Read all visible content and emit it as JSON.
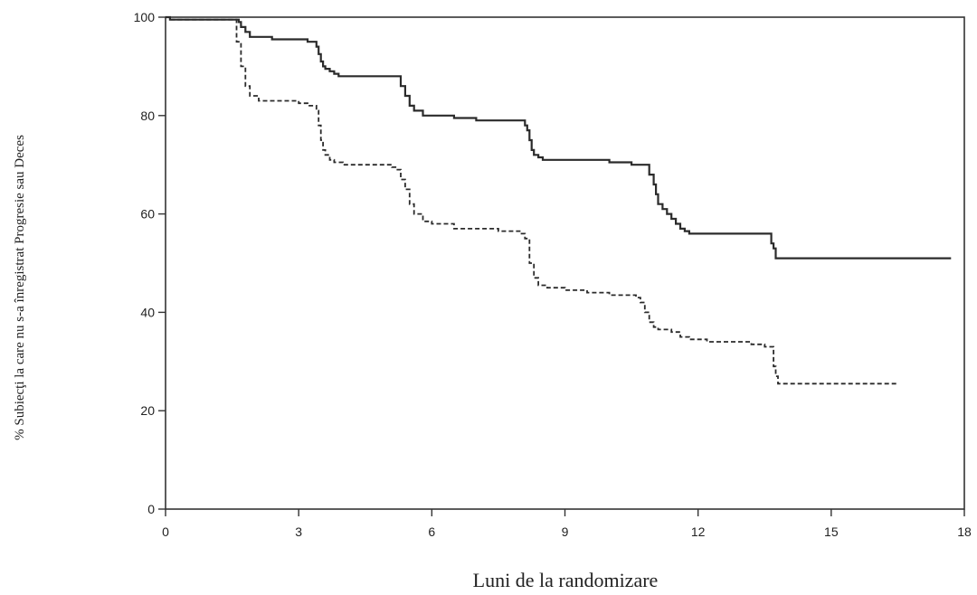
{
  "chart_data": {
    "type": "line",
    "xlabel": "Luni de la randomizare",
    "ylabel": "% Subiecţi la care nu s-a înregistrat Progresie sau Deces",
    "xlim": [
      0,
      18
    ],
    "ylim": [
      0,
      100
    ],
    "xticks": [
      0,
      3,
      6,
      9,
      12,
      15,
      18
    ],
    "yticks": [
      0,
      20,
      40,
      60,
      80,
      100
    ],
    "grid": false,
    "series": [
      {
        "style": "solid",
        "color": "#2b2b2b",
        "x": [
          0,
          0.1,
          1.6,
          1.65,
          1.7,
          1.8,
          1.9,
          2.3,
          2.4,
          3.2,
          3.4,
          3.45,
          3.5,
          3.55,
          3.6,
          3.7,
          3.8,
          3.9,
          4.0,
          5.2,
          5.3,
          5.4,
          5.5,
          5.6,
          5.8,
          6.0,
          6.5,
          7.0,
          8.0,
          8.1,
          8.15,
          8.2,
          8.25,
          8.3,
          8.4,
          8.5,
          9.0,
          10.0,
          10.5,
          10.8,
          10.9,
          11.0,
          11.05,
          11.1,
          11.2,
          11.3,
          11.4,
          11.5,
          11.6,
          11.7,
          11.8,
          13.6,
          13.65,
          13.7,
          13.75,
          17.7
        ],
        "y": [
          100,
          99.5,
          99.5,
          99,
          98,
          97,
          96,
          96,
          95.5,
          95,
          94,
          92.5,
          91,
          90,
          89.5,
          89,
          88.5,
          88,
          88,
          88,
          86,
          84,
          82,
          81,
          80,
          80,
          79.5,
          79,
          79,
          78,
          77,
          75,
          73,
          72,
          71.5,
          71,
          71,
          70.5,
          70,
          70,
          68,
          66,
          64,
          62,
          61,
          60,
          59,
          58,
          57,
          56.5,
          56,
          56,
          54,
          53,
          51,
          51
        ]
      },
      {
        "style": "dashed",
        "color": "#2b2b2b",
        "x": [
          0,
          0.1,
          1.55,
          1.6,
          1.7,
          1.8,
          1.9,
          2.1,
          2.3,
          3.0,
          3.2,
          3.4,
          3.45,
          3.5,
          3.55,
          3.6,
          3.7,
          3.8,
          4.0,
          5.1,
          5.2,
          5.3,
          5.4,
          5.5,
          5.6,
          5.8,
          6.0,
          6.5,
          7.0,
          7.5,
          8.0,
          8.1,
          8.2,
          8.3,
          8.4,
          8.6,
          9.0,
          9.5,
          10.0,
          10.6,
          10.7,
          10.8,
          10.9,
          11.0,
          11.1,
          11.4,
          11.6,
          11.8,
          12.2,
          13.0,
          13.2,
          13.5,
          13.6,
          13.7,
          13.75,
          13.8,
          16.5
        ],
        "y": [
          100,
          99.5,
          99.5,
          95,
          90,
          86,
          84,
          83,
          83,
          82.5,
          82,
          81,
          78,
          75,
          73,
          72,
          71,
          70.5,
          70,
          69.5,
          69,
          67,
          65,
          62,
          60,
          58.5,
          58,
          57,
          57,
          56.5,
          56,
          55,
          50,
          47,
          45.5,
          45,
          44.5,
          44,
          43.5,
          43,
          42,
          40,
          38,
          37,
          36.5,
          36,
          35,
          34.5,
          34,
          34,
          33.5,
          33,
          33,
          29,
          27,
          25.5,
          25.5
        ]
      }
    ]
  }
}
